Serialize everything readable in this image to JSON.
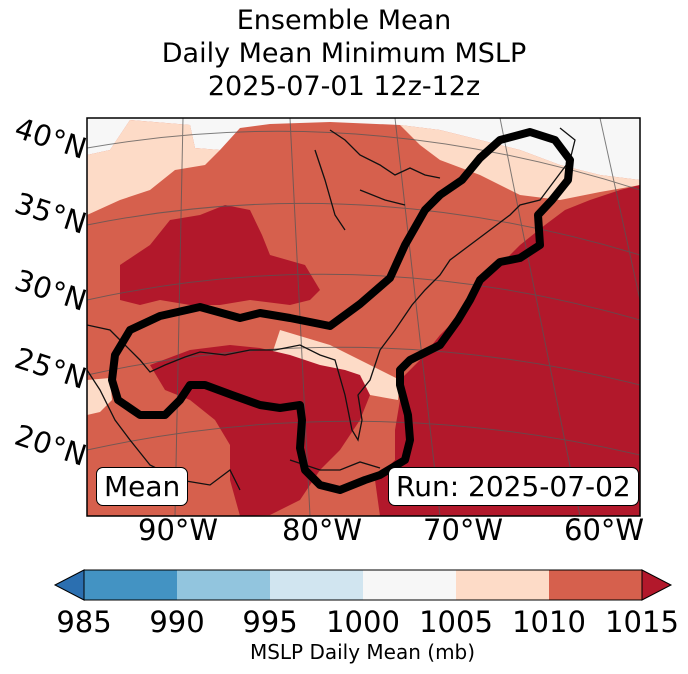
{
  "title": {
    "line1": "Ensemble Mean",
    "line2": "Daily Mean Minimum MSLP",
    "line3": "2025-07-01 12z-12z"
  },
  "map": {
    "lat_labels": [
      "40°N",
      "35°N",
      "30°N",
      "25°N",
      "20°N"
    ],
    "lon_labels": [
      "90°W",
      "80°W",
      "70°W",
      "60°W"
    ],
    "mean_badge": "Mean",
    "run_badge": "Run: 2025-07-02"
  },
  "colorbar": {
    "ticks": [
      "985",
      "990",
      "995",
      "1000",
      "1005",
      "1010",
      "1015"
    ],
    "colors": [
      "#2b6fb0",
      "#4393c3",
      "#92c5de",
      "#d1e5f0",
      "#f7f7f7",
      "#fddbc7",
      "#d6604d",
      "#b2182b"
    ],
    "label": "MSLP Daily Mean (mb)"
  },
  "contour": {
    "color": "#000000"
  }
}
